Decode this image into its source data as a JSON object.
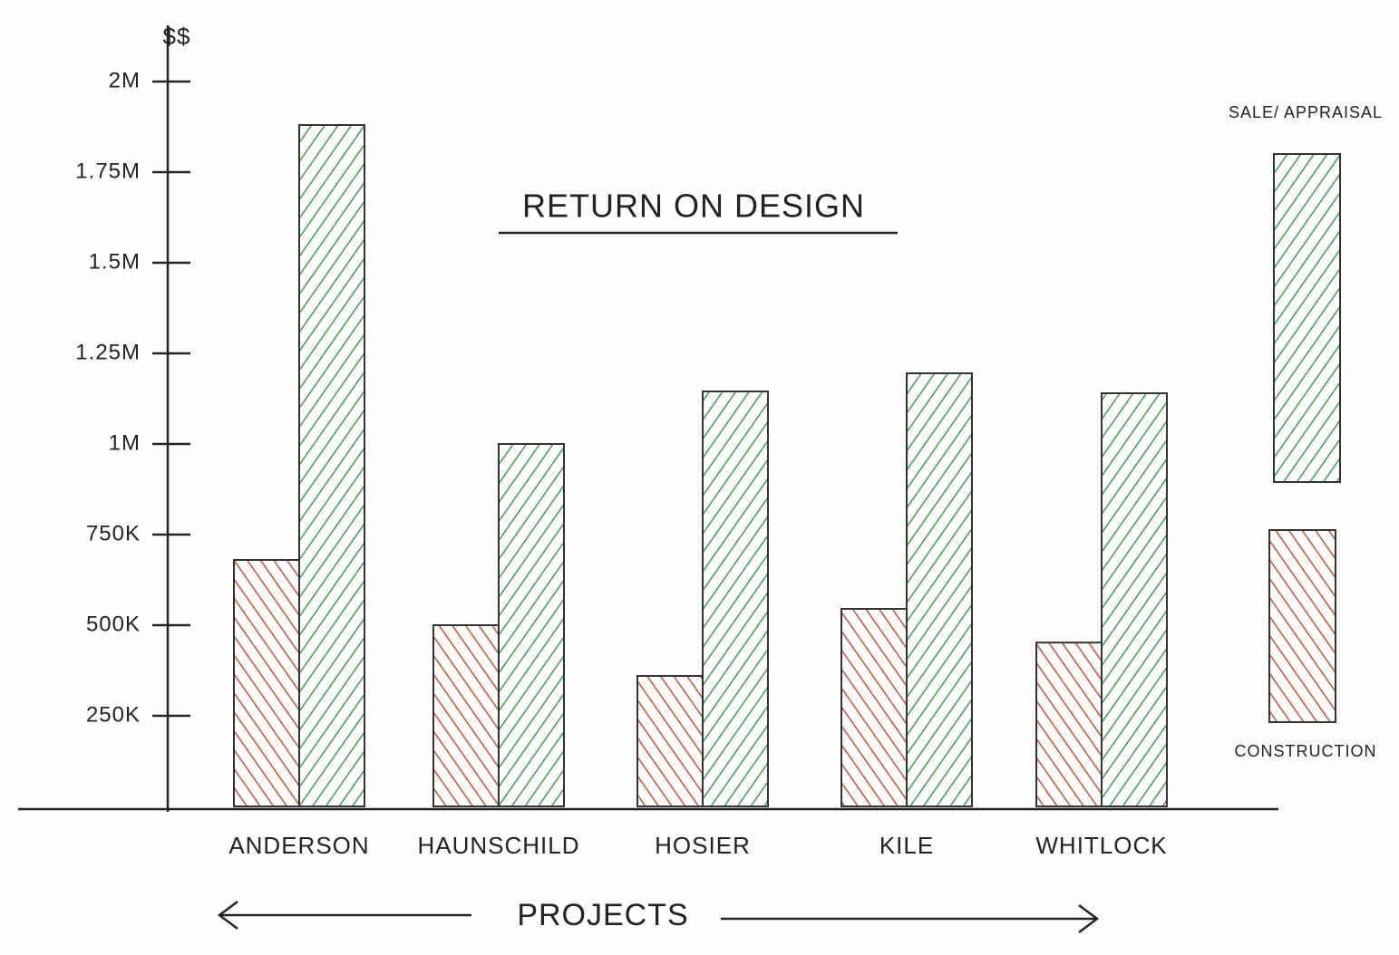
{
  "chart_data": {
    "type": "bar",
    "title": "RETURN ON DESIGN",
    "y_label": "$$",
    "x_label": "PROJECTS",
    "categories": [
      "ANDERSON",
      "HAUNSCHILD",
      "HOSIER",
      "KILE",
      "WHITLOCK"
    ],
    "series": [
      {
        "name": "CONSTRUCTION",
        "color": "#c8503c",
        "values": [
          680000,
          500000,
          360000,
          545000,
          452000
        ]
      },
      {
        "name": "SALE/ APPRAISAL",
        "color": "#3a9e55",
        "values": [
          1880000,
          1000000,
          1145000,
          1195000,
          1140000
        ]
      }
    ],
    "ylim": [
      0,
      2150000
    ],
    "yticks": [
      {
        "value": 250000,
        "label": "250K"
      },
      {
        "value": 500000,
        "label": "500K"
      },
      {
        "value": 750000,
        "label": "750K"
      },
      {
        "value": 1000000,
        "label": "1M"
      },
      {
        "value": 1250000,
        "label": "1.25M"
      },
      {
        "value": 1500000,
        "label": "1.5M"
      },
      {
        "value": 1750000,
        "label": "1.75M"
      },
      {
        "value": 2000000,
        "label": "2M"
      }
    ]
  }
}
